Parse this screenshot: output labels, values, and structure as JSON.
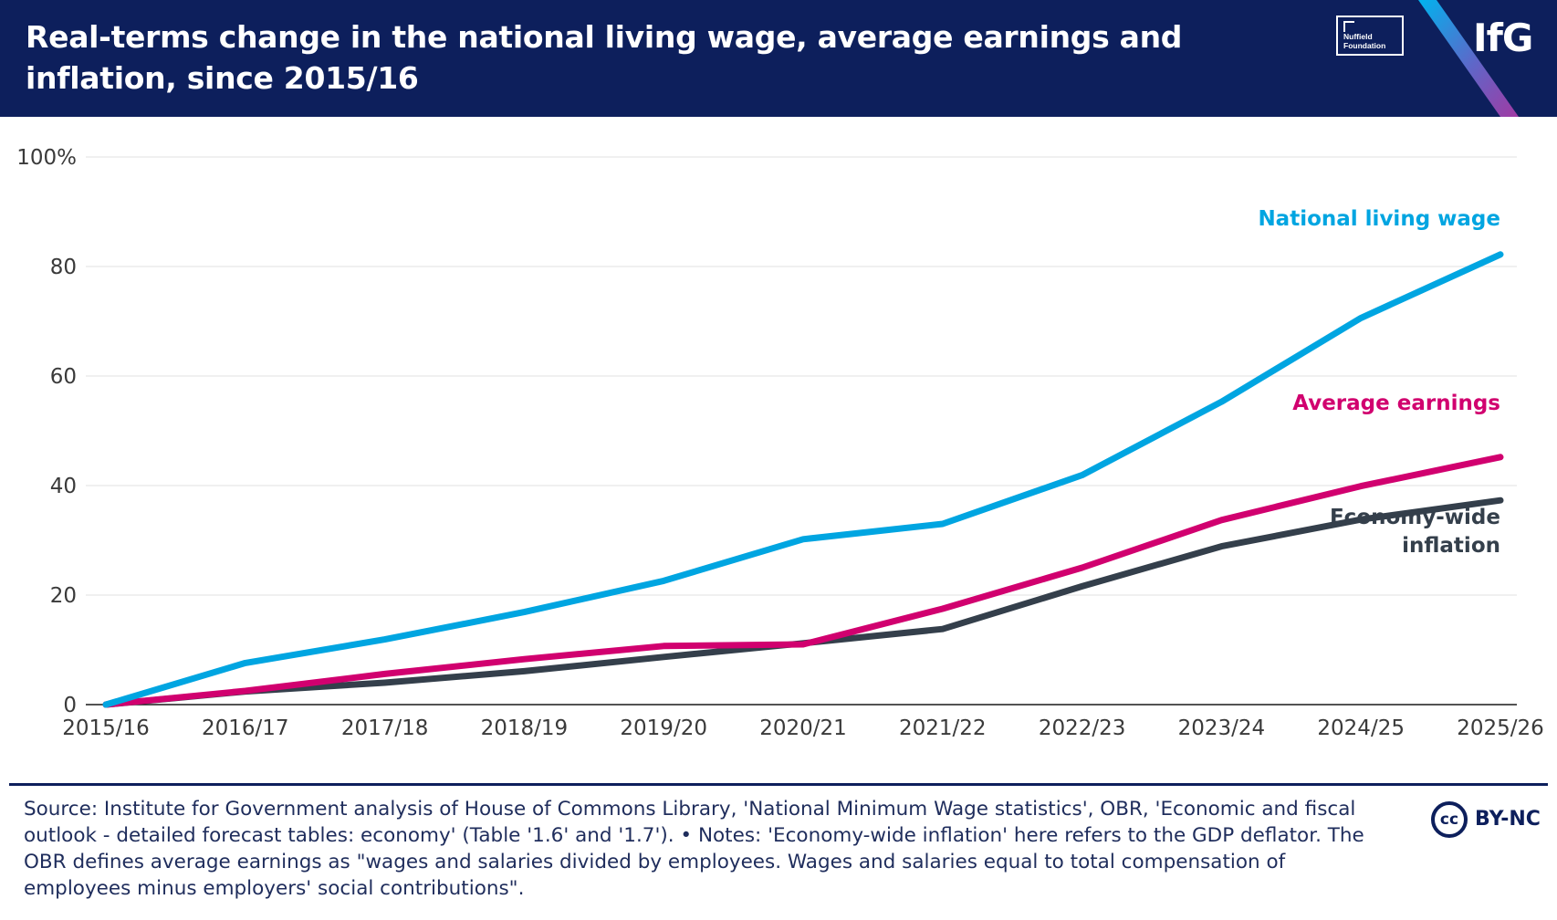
{
  "header": {
    "title": "Real-terms change in the national living wage, average earnings and inflation, since 2015/16",
    "partner_logo_line1": "Nuffield",
    "partner_logo_line2": "Foundation",
    "brand_logo": "IfG",
    "bg_color": "#0d1f5c"
  },
  "chart_data": {
    "type": "line",
    "title": "Real-terms change in the national living wage, average earnings and inflation, since 2015/16",
    "xlabel": "",
    "ylabel": "",
    "categories": [
      "2015/16",
      "2016/17",
      "2017/18",
      "2018/19",
      "2019/20",
      "2020/21",
      "2021/22",
      "2022/23",
      "2023/24",
      "2024/25",
      "2025/26"
    ],
    "ylim": [
      0,
      100
    ],
    "yticks": [
      {
        "value": 0,
        "label": "0"
      },
      {
        "value": 20,
        "label": "20"
      },
      {
        "value": 40,
        "label": "40"
      },
      {
        "value": 60,
        "label": "60"
      },
      {
        "value": 80,
        "label": "80"
      },
      {
        "value": 100,
        "label": "100%"
      }
    ],
    "grid": true,
    "series": [
      {
        "name": "National living wage",
        "color": "#00a5e1",
        "values": [
          0,
          7.6,
          11.9,
          16.9,
          22.6,
          30.2,
          33,
          41.9,
          55.3,
          70.6,
          82.2
        ],
        "label_lines": [
          "National living wage"
        ]
      },
      {
        "name": "Average earnings",
        "color": "#d1006f",
        "values": [
          0,
          2.5,
          5.6,
          8.3,
          10.7,
          11,
          17.5,
          25,
          33.7,
          39.9,
          45.2
        ],
        "label_lines": [
          "Average earnings"
        ]
      },
      {
        "name": "Economy-wide inflation",
        "color": "#343f4b",
        "values": [
          0,
          2.4,
          4,
          6.1,
          8.7,
          11.2,
          13.8,
          21.6,
          28.9,
          33.8,
          37.3
        ],
        "label_lines": [
          "Economy-wide",
          "inflation"
        ]
      }
    ]
  },
  "footer": {
    "source": "Source: Institute for Government analysis of House of Commons Library, 'National Minimum Wage statistics', OBR, 'Economic and fiscal outlook - detailed forecast tables: economy' (Table '1.6' and '1.7'). • Notes: 'Economy-wide inflation' here refers to the GDP deflator. The OBR defines average earnings as \"wages and salaries divided by employees. Wages and salaries equal to total compensation of employees minus employers' social contributions\".",
    "cc_symbol": "cc",
    "license": "BY-NC"
  }
}
